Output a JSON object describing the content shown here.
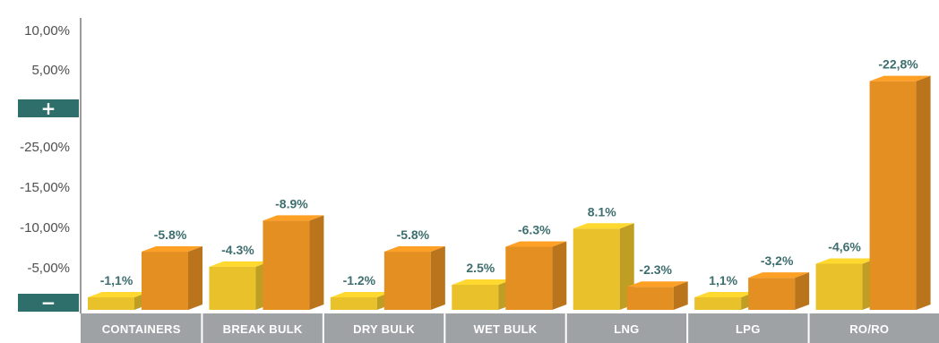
{
  "chart_data": {
    "type": "bar",
    "title": "",
    "xlabel": "",
    "ylabel": "",
    "categories": [
      "CONTAINERS",
      "BREAK BULK",
      "DRY BULK",
      "WET BULK",
      "LNG",
      "LPG",
      "RO/RO"
    ],
    "y_tick_labels_top": [
      "10,00%",
      "5,00%"
    ],
    "y_tick_labels_bottom": [
      "-25,00%",
      "-15,00%",
      "-10,00%",
      "-5,00%"
    ],
    "positive_marker": "+",
    "negative_marker": "−",
    "series": [
      {
        "color": "#e9c12b",
        "values": [
          -1.1,
          -4.3,
          -1.2,
          2.5,
          8.1,
          1.1,
          -4.6
        ],
        "labels": [
          "-1,1%",
          "-4.3%",
          "-1.2%",
          "2.5%",
          "8.1%",
          "1,1%",
          "-4,6%"
        ]
      },
      {
        "color": "#e38f22",
        "values": [
          -5.8,
          -8.9,
          -5.8,
          -6.3,
          -2.3,
          -3.2,
          -22.8
        ],
        "labels": [
          "-5.8%",
          "-8.9%",
          "-5.8%",
          "-6.3%",
          "-2.3%",
          "-3,2%",
          "-22,8%"
        ]
      }
    ],
    "grid": false,
    "legend": "none"
  }
}
